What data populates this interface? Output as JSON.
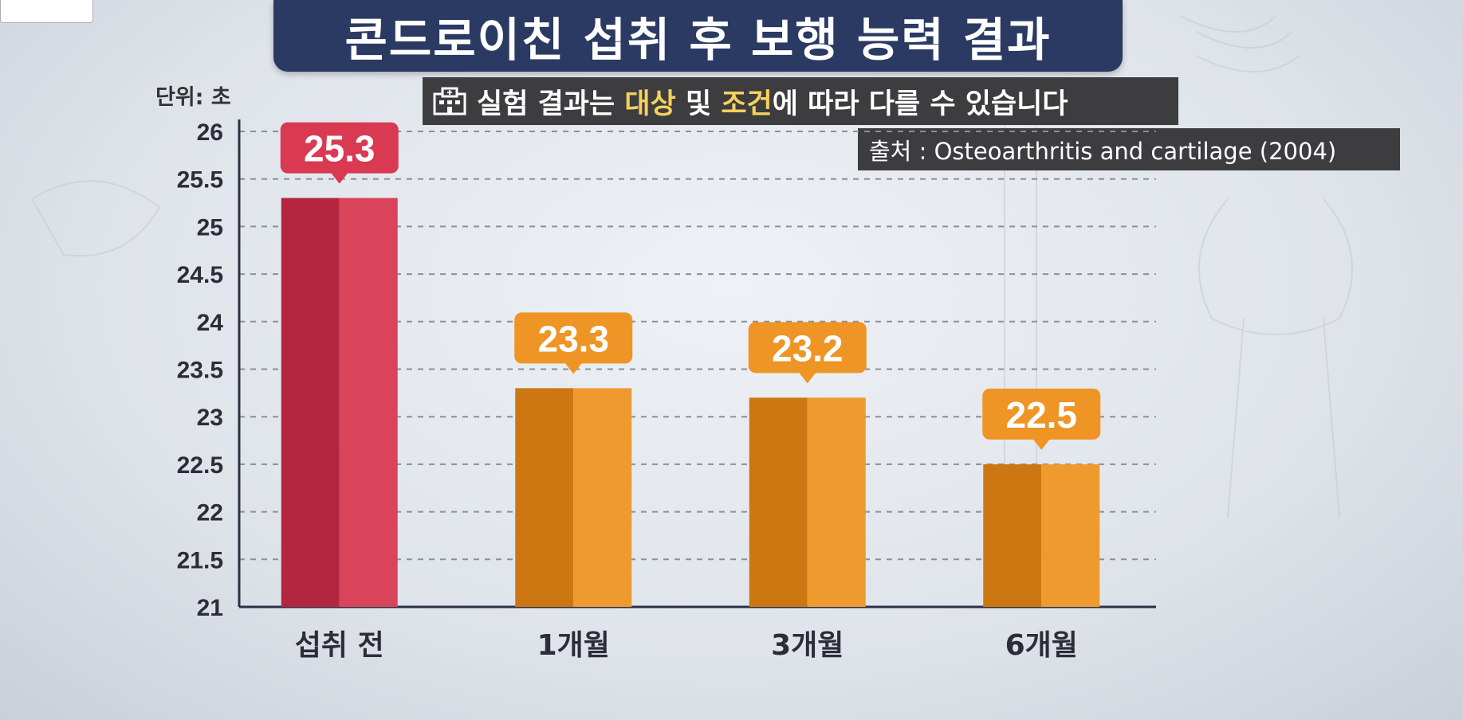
{
  "header": {
    "title": "콘드로이친 섭취 후 보행 능력 결과"
  },
  "unit_label": "단위: 초",
  "notice": {
    "part1": "실험 결과는 ",
    "highlight1": "대상",
    "part2": " 및 ",
    "highlight2": "조건",
    "part3": "에 따라 다를 수 있습니다"
  },
  "source": "출처 : Osteoarthritis and cartilage (2004)",
  "colors": {
    "red_bar_dark": "#b42540",
    "red_bar_light": "#d9445a",
    "orange_bar_dark": "#cc7711",
    "orange_bar_light": "#ee9a2e",
    "label_red": "#d93a52",
    "label_orange": "#ee9526",
    "title_bg": "#2b3a63"
  },
  "chart_data": {
    "type": "bar",
    "title": "콘드로이친 섭취 후 보행 능력 결과",
    "categories": [
      "섭취 전",
      "1개월",
      "3개월",
      "6개월"
    ],
    "values": [
      25.3,
      23.3,
      23.2,
      22.5
    ],
    "value_labels": [
      "25.3",
      "23.3",
      "23.2",
      "22.5"
    ],
    "bar_colors": [
      "red",
      "orange",
      "orange",
      "orange"
    ],
    "ylim": [
      21,
      26
    ],
    "yticks": [
      "21",
      "21.5",
      "22",
      "22.5",
      "23",
      "23.5",
      "24",
      "24.5",
      "25",
      "25.5",
      "26"
    ],
    "ylabel": "단위: 초",
    "grid": true
  }
}
